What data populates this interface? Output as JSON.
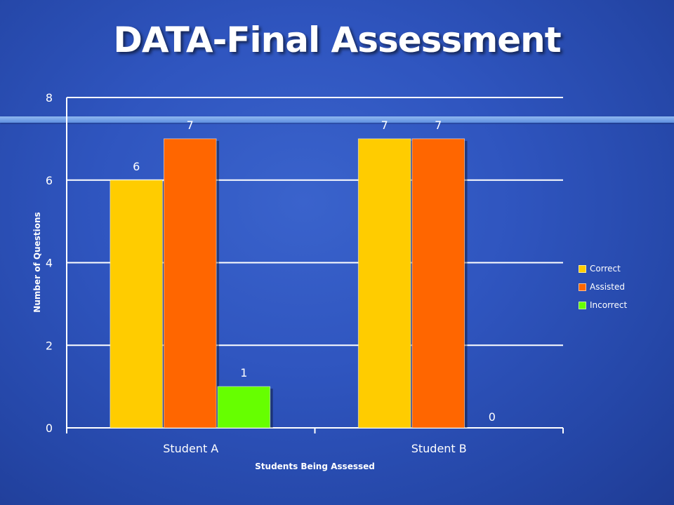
{
  "slide": {
    "title": "DATA-Final Assessment"
  },
  "chart_data": {
    "type": "bar",
    "categories": [
      "Student A",
      "Student B"
    ],
    "series": [
      {
        "name": "Correct",
        "values": [
          6,
          7
        ],
        "color": "#FFCC00"
      },
      {
        "name": "Assisted",
        "values": [
          7,
          7
        ],
        "color": "#FF6600"
      },
      {
        "name": "Incorrect",
        "values": [
          1,
          0
        ],
        "color": "#66FF00"
      }
    ],
    "data_labels": [
      [
        "6",
        "7"
      ],
      [
        "7",
        "7"
      ],
      [
        "1",
        "0"
      ]
    ],
    "title": "",
    "xlabel": "Students Being Assessed",
    "ylabel": "Number of Questions",
    "ylim": [
      0,
      8
    ],
    "yticks": [
      "0",
      "2",
      "4",
      "6",
      "8"
    ],
    "grid": true,
    "legend_position": "right"
  }
}
